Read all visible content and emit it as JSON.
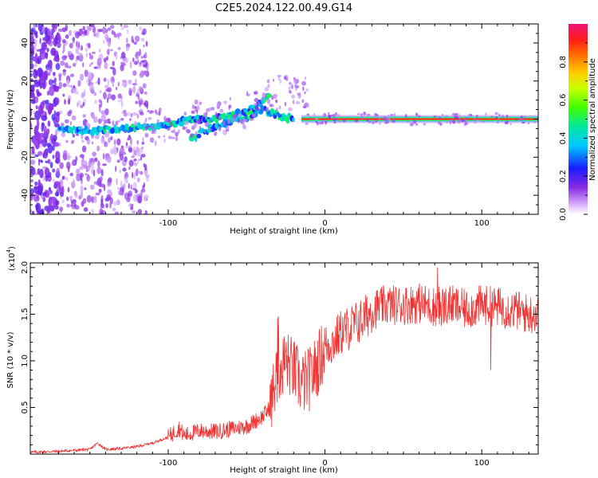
{
  "title": "C2E5.2024.122.00.49.G14",
  "chart_data": [
    {
      "type": "heatmap",
      "xlabel": "Height of straight line (km)",
      "ylabel": "Frequency (Hz)",
      "xlim": [
        -188,
        136
      ],
      "ylim": [
        -50,
        50
      ],
      "x_ticks": [
        -100,
        0,
        100
      ],
      "y_ticks": [
        40,
        20,
        0,
        -20,
        -40
      ],
      "grid": false,
      "colorbar": {
        "label": "Normalized spectral amplitude",
        "range": [
          0,
          1
        ],
        "ticks": [
          "0.0",
          "0.2",
          "0.4",
          "0.6",
          "0.8"
        ]
      },
      "features": {
        "strong_line": {
          "x_range": [
            -15,
            136
          ],
          "frequency": 0,
          "amplitude": 0.95
        },
        "main_trace": [
          [
            -170,
            -6
          ],
          [
            -150,
            -6
          ],
          [
            -130,
            -5
          ],
          [
            -110,
            -4
          ],
          [
            -95,
            -2
          ],
          [
            -85,
            0
          ],
          [
            -75,
            0
          ],
          [
            -65,
            1
          ],
          [
            -55,
            3
          ],
          [
            -45,
            6
          ],
          [
            -38,
            10
          ],
          [
            -35,
            14
          ]
        ],
        "lower_branch": [
          [
            -85,
            -10
          ],
          [
            -75,
            -6
          ],
          [
            -65,
            -3
          ],
          [
            -55,
            0
          ],
          [
            -45,
            3
          ],
          [
            -38,
            5
          ],
          [
            -30,
            2
          ],
          [
            -20,
            0
          ]
        ]
      }
    },
    {
      "type": "line",
      "xlabel": "Height of straight line (km)",
      "ylabel": "SNR (10 * v/v)",
      "y_multiplier": "(x10",
      "y_multiplier_exp": "4",
      "y_multiplier_close": ")",
      "xlim": [
        -188,
        136
      ],
      "ylim": [
        0,
        2.05
      ],
      "x_ticks": [
        -100,
        0,
        100
      ],
      "y_ticks": [
        0.5,
        1.0,
        1.5,
        2.0
      ],
      "y_tick_labels": [
        "0.5",
        "1.0",
        "1.5",
        "2.0"
      ],
      "color": "#ee3333",
      "series": [
        {
          "x": [
            -188,
            -170,
            -150,
            -145,
            -140,
            -130,
            -120,
            -110,
            -100,
            -93,
            -90,
            -80,
            -70,
            -60,
            -50,
            -45,
            -40,
            -35,
            -30,
            -25,
            -20,
            -15,
            -10,
            -5,
            0,
            5,
            10,
            15,
            20,
            25,
            30,
            40,
            50,
            60,
            70,
            80,
            90,
            100,
            110,
            120,
            130,
            136
          ],
          "y": [
            0.02,
            0.03,
            0.05,
            0.12,
            0.05,
            0.06,
            0.08,
            0.12,
            0.18,
            0.28,
            0.2,
            0.25,
            0.24,
            0.27,
            0.3,
            0.35,
            0.4,
            0.5,
            0.9,
            1.0,
            0.9,
            0.75,
            0.8,
            0.95,
            1.15,
            1.2,
            1.3,
            1.35,
            1.4,
            1.45,
            1.55,
            1.6,
            1.6,
            1.62,
            1.58,
            1.6,
            1.55,
            1.6,
            1.58,
            1.55,
            1.5,
            1.52
          ]
        }
      ]
    }
  ]
}
